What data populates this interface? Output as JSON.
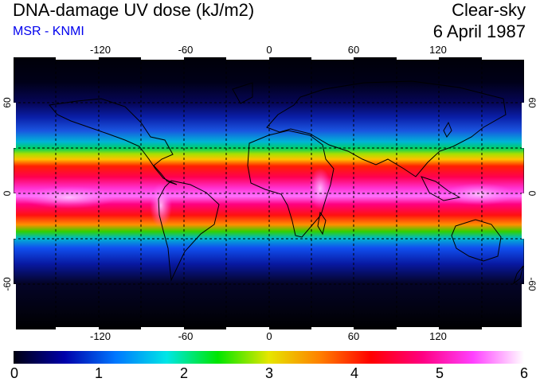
{
  "header": {
    "title": "DNA-damage UV dose (kJ/m2)",
    "subtitle": "MSR - KNMI",
    "condition": "Clear-sky",
    "date": "6 April 1987"
  },
  "map": {
    "projection": "equirectangular",
    "lon_range": [
      -180,
      180
    ],
    "lat_range": [
      -90,
      90
    ],
    "lon_ticks": [
      "-120",
      "-60",
      "0",
      "60",
      "120"
    ],
    "lat_ticks": [
      "60",
      "0",
      "-60"
    ],
    "grid": "dashed every 30 degrees",
    "variable": "DNA-damage UV dose",
    "unit": "kJ/m2"
  },
  "colorbar": {
    "min": 0,
    "max": 6,
    "labels": [
      "0",
      "1",
      "2",
      "3",
      "4",
      "5",
      "6"
    ],
    "colors": [
      "#000010",
      "#0000aa",
      "#0077ff",
      "#00e6e6",
      "#00e600",
      "#e6e600",
      "#ff8000",
      "#ff0000",
      "#ff0080",
      "#ff40ff",
      "#ffffff"
    ]
  }
}
